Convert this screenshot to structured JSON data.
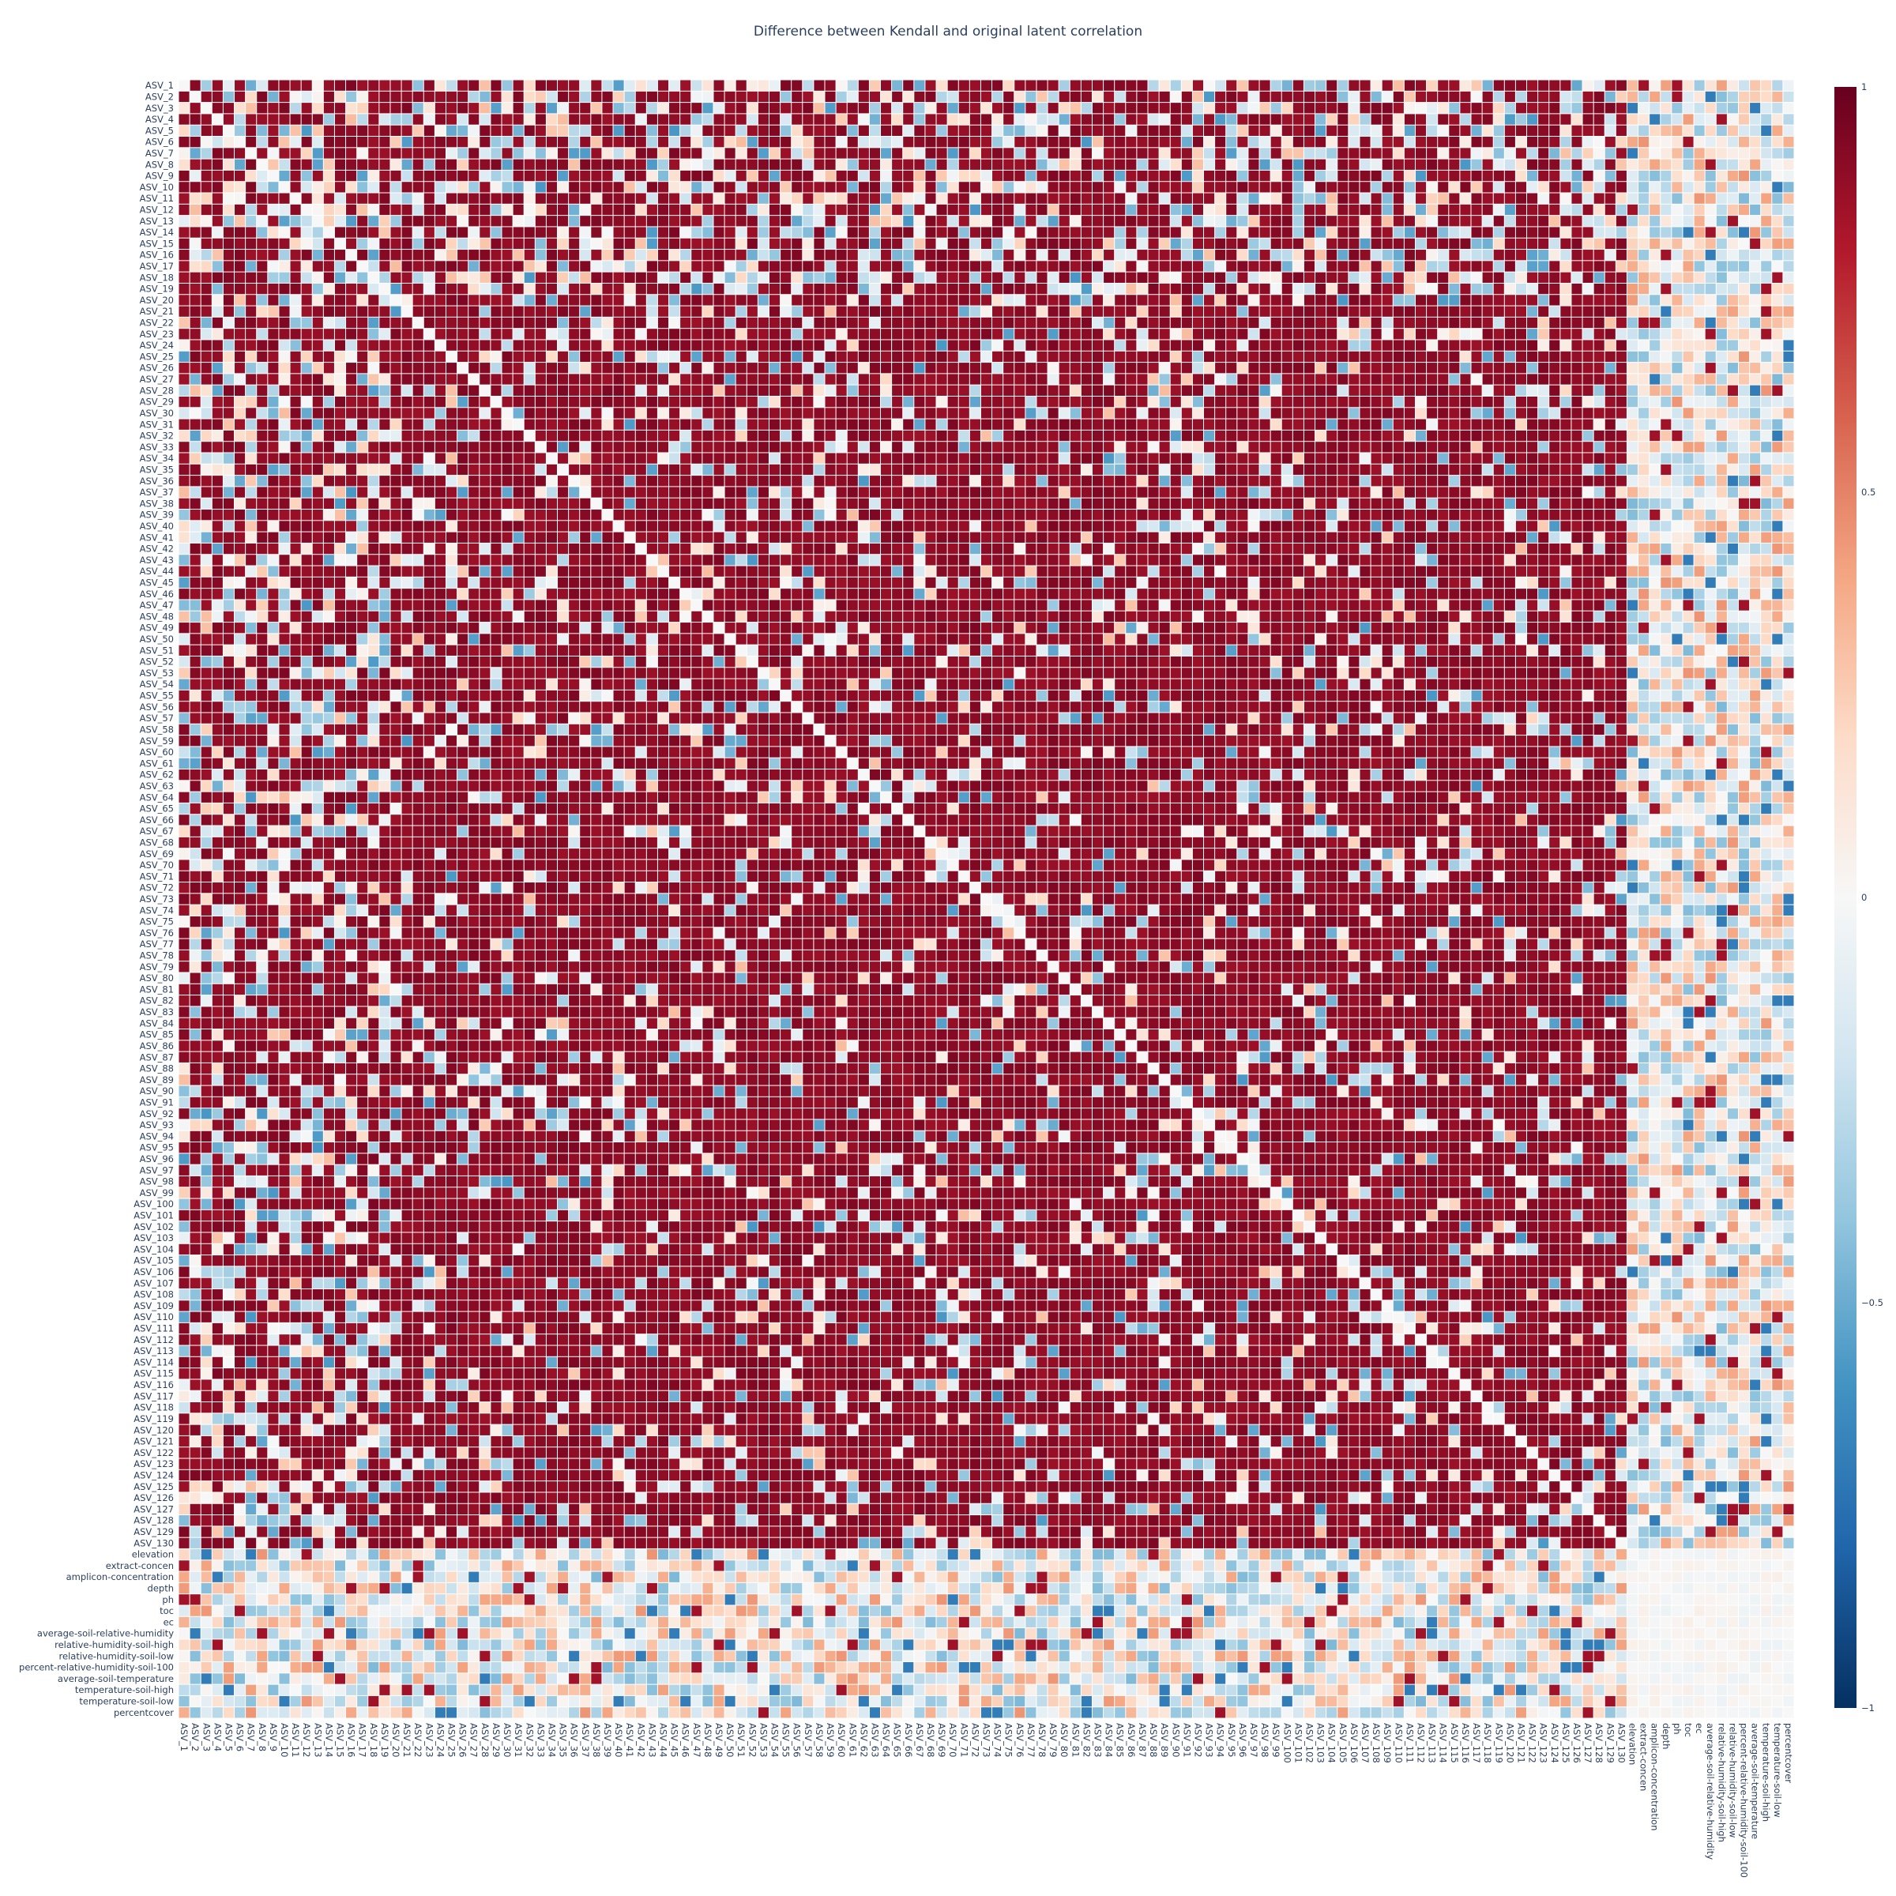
{
  "chart_data": {
    "type": "heatmap",
    "title": "Difference between Kendall and original latent correlation",
    "colorscale": "RdBu",
    "zmin": -1,
    "zmax": 1,
    "colorbar_ticks": [
      {
        "value": 1,
        "label": "1"
      },
      {
        "value": 0.5,
        "label": "0.5"
      },
      {
        "value": 0,
        "label": "0"
      },
      {
        "value": -0.5,
        "label": "−0.5"
      },
      {
        "value": -1,
        "label": "−1"
      }
    ],
    "asv_count": 130,
    "asv_prefix": "ASV_",
    "environmental_variables": [
      "elevation",
      "extract-concen",
      "amplicon-concentration",
      "depth",
      "ph",
      "toc",
      "ec",
      "average-soil-relative-humidity",
      "relative-humidity-soil-high",
      "relative-humidity-soil-low",
      "percent-relative-humidity-soil-100",
      "average-soil-temperature",
      "temperature-soil-high",
      "temperature-soil-low",
      "percentcover"
    ],
    "diagonal_value": 0,
    "typical_values": {
      "asv_vs_asv": "mostly ≈ 0.9 (dark red) with scattered cells between −0.4 and 0.3",
      "asv_vs_environment": "mostly between −0.6 and 0.6",
      "environment_vs_environment": "close to 0"
    }
  }
}
